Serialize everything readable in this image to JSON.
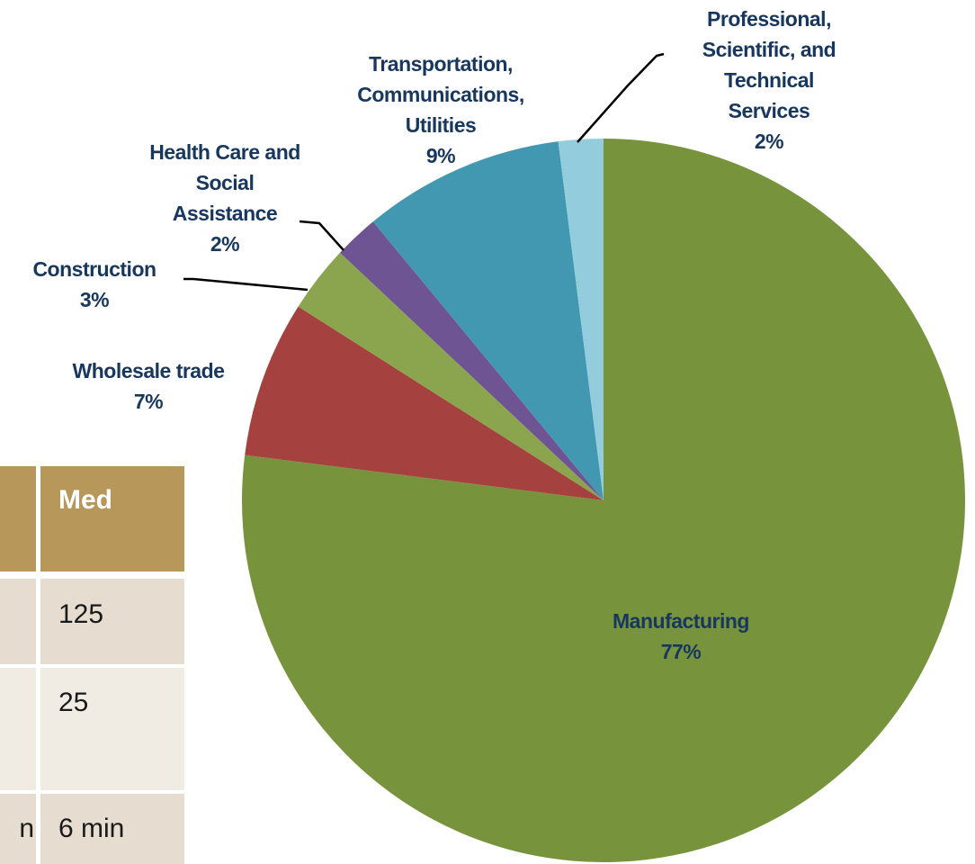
{
  "chart_data": {
    "type": "pie",
    "categories": [
      "Manufacturing",
      "Wholesale trade",
      "Construction",
      "Health Care and\nSocial\nAssistance",
      "Transportation,\nCommunications,\nUtilities",
      "Professional,\nScientific, and\nTechnical\nServices"
    ],
    "values": [
      77,
      7,
      3,
      2,
      9,
      2
    ],
    "value_labels": [
      "77%",
      "7%",
      "3%",
      "2%",
      "9%",
      "2%"
    ],
    "colors": [
      "#77933c",
      "#a5423f",
      "#8ba54e",
      "#6f5494",
      "#4298b1",
      "#93cddd"
    ]
  },
  "table": {
    "header": "Med",
    "rows": [
      {
        "med": "125"
      },
      {
        "med": "25"
      },
      {
        "prev": "n",
        "med": "6 min"
      }
    ]
  }
}
